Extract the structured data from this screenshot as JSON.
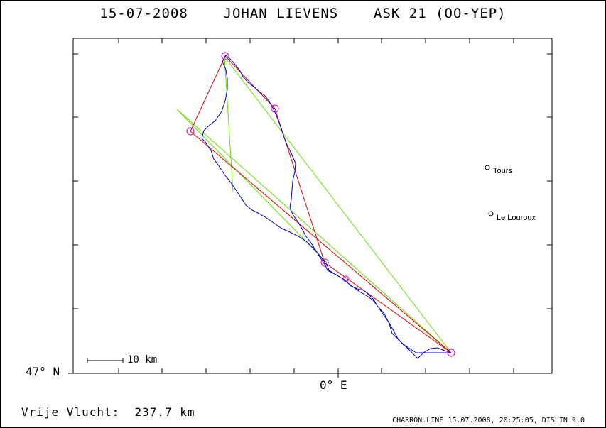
{
  "title": "15-07-2008    JOHAN LIEVENS    ASK 21 (OO-YEP)",
  "axis": {
    "lat_label": "47° N",
    "lon_label": "0° E"
  },
  "scale_bar": {
    "label": "10 km"
  },
  "distance": "Vrije Vlucht:  237.7 km",
  "footer": "CHARRON.LINE 15.07.2008, 20:25:05, DISLIN 9.0",
  "towns": [
    {
      "name": "Tours"
    },
    {
      "name": "Le Louroux"
    }
  ],
  "colors": {
    "track": "#0000cc",
    "task_red": "#dd0000",
    "task_green": "#66dd00",
    "turnpoint": "#cc00cc",
    "frame": "#000000"
  }
}
